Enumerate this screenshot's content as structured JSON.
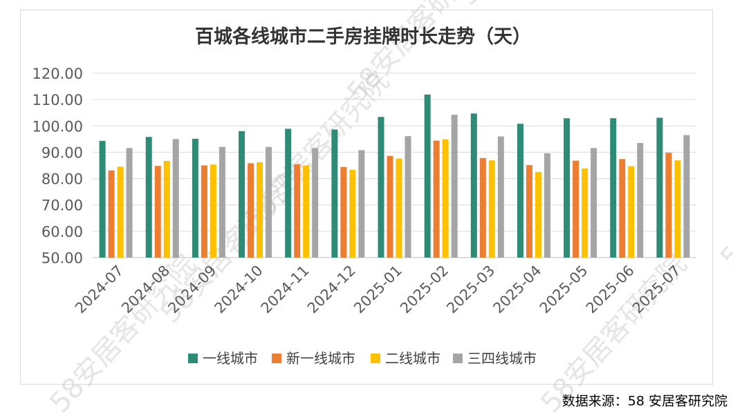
{
  "chart_data": {
    "type": "bar",
    "title": "百城各线城市二手房挂牌时长走势（天）",
    "xlabel": "",
    "ylabel": "",
    "ylim": [
      50,
      120
    ],
    "y_ticks": [
      "50.00",
      "60.00",
      "70.00",
      "80.00",
      "90.00",
      "100.00",
      "110.00",
      "120.00"
    ],
    "grid": true,
    "legend_position": "bottom",
    "categories": [
      "2024-07",
      "2024-08",
      "2024-09",
      "2024-10",
      "2024-11",
      "2024-12",
      "2025-01",
      "2025-02",
      "2025-03",
      "2025-04",
      "2025-05",
      "2025-06",
      "2025-07"
    ],
    "series": [
      {
        "name": "一线城市",
        "color": "#2e8b76",
        "values": [
          94.3,
          95.8,
          95.1,
          98.0,
          98.9,
          98.6,
          103.4,
          111.9,
          104.7,
          100.8,
          102.9,
          102.9,
          103.1
        ]
      },
      {
        "name": "新一线城市",
        "color": "#ed7d31",
        "values": [
          83.1,
          84.8,
          85.0,
          85.8,
          85.4,
          84.4,
          88.6,
          94.4,
          87.8,
          85.1,
          86.8,
          87.4,
          89.8
        ]
      },
      {
        "name": "二线城市",
        "color": "#ffc000",
        "values": [
          84.5,
          86.7,
          85.3,
          86.2,
          85.0,
          83.3,
          87.6,
          94.9,
          86.9,
          82.5,
          83.8,
          84.7,
          86.9
        ]
      },
      {
        "name": "三四线城市",
        "color": "#a5a5a5",
        "values": [
          91.6,
          95.0,
          92.0,
          92.0,
          91.5,
          90.8,
          96.1,
          104.2,
          96.0,
          89.6,
          91.6,
          93.5,
          96.5
        ]
      }
    ]
  },
  "watermark": {
    "text": "58安居客研究院"
  },
  "source_note": "数据来源：58 安居客研究院"
}
